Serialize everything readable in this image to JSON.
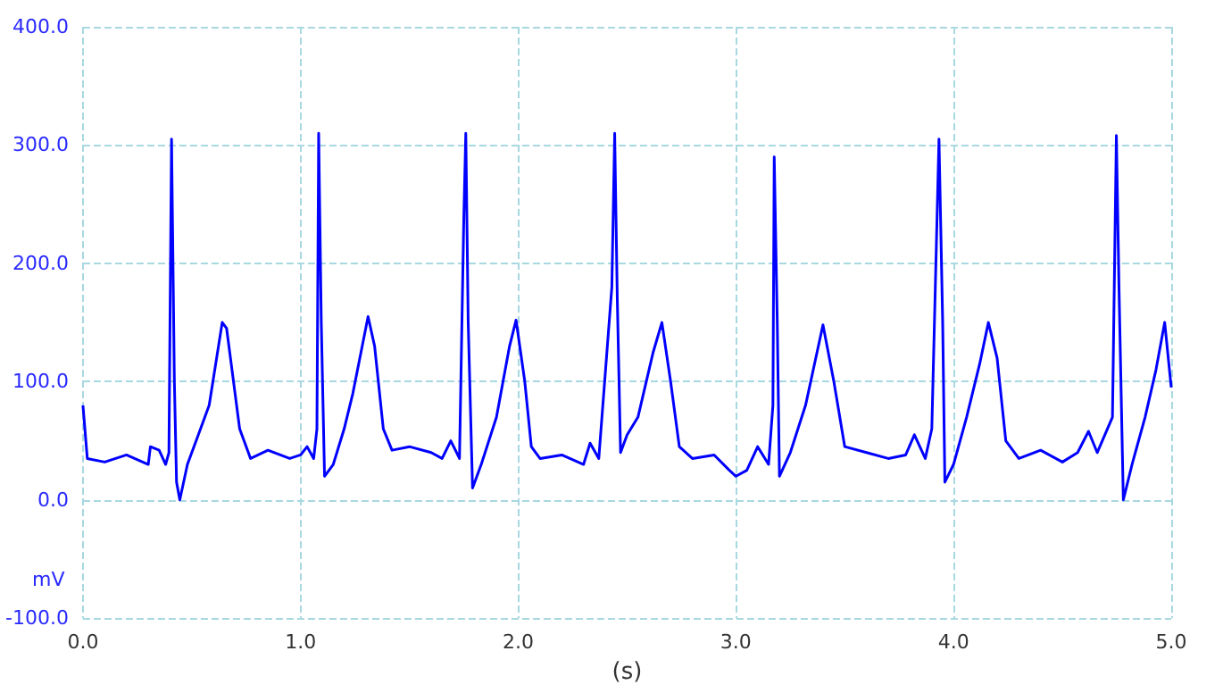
{
  "chart_data": {
    "type": "line",
    "xlabel": "(s)",
    "ylabel": "mV",
    "xlim": [
      0,
      5
    ],
    "ylim": [
      -100,
      400
    ],
    "xticks": [
      {
        "value": 0,
        "label": "0.0"
      },
      {
        "value": 1,
        "label": "1.0"
      },
      {
        "value": 2,
        "label": "2.0"
      },
      {
        "value": 3,
        "label": "3.0"
      },
      {
        "value": 4,
        "label": "4.0"
      },
      {
        "value": 5,
        "label": "5.0"
      }
    ],
    "yticks": [
      {
        "value": -100,
        "label": "-100.0"
      },
      {
        "value": 0,
        "label": "0.0"
      },
      {
        "value": 100,
        "label": "100.0"
      },
      {
        "value": 200,
        "label": "200.0"
      },
      {
        "value": 300,
        "label": "300.0"
      },
      {
        "value": 400,
        "label": "400.0"
      }
    ],
    "grid": true,
    "marker": "none",
    "series": [
      {
        "color": "#0000ff",
        "x": [
          0,
          0.02,
          0.1,
          0.2,
          0.3,
          0.31,
          0.35,
          0.38,
          0.395,
          0.407,
          0.42,
          0.43,
          0.445,
          0.48,
          0.53,
          0.58,
          0.64,
          0.66,
          0.72,
          0.77,
          0.85,
          0.95,
          1.0,
          1.03,
          1.06,
          1.075,
          1.083,
          1.095,
          1.11,
          1.15,
          1.2,
          1.24,
          1.31,
          1.34,
          1.38,
          1.42,
          1.5,
          1.6,
          1.65,
          1.69,
          1.73,
          1.75,
          1.759,
          1.77,
          1.79,
          1.83,
          1.9,
          1.96,
          1.99,
          2.03,
          2.06,
          2.1,
          2.2,
          2.3,
          2.33,
          2.37,
          2.43,
          2.443,
          2.455,
          2.47,
          2.5,
          2.55,
          2.62,
          2.66,
          2.7,
          2.74,
          2.8,
          2.9,
          2.97,
          3.0,
          3.05,
          3.1,
          3.15,
          3.17,
          3.176,
          3.19,
          3.2,
          3.25,
          3.32,
          3.4,
          3.45,
          3.5,
          3.6,
          3.7,
          3.78,
          3.82,
          3.87,
          3.9,
          3.933,
          3.95,
          3.96,
          4.0,
          4.06,
          4.12,
          4.16,
          4.2,
          4.24,
          4.3,
          4.4,
          4.5,
          4.57,
          4.62,
          4.66,
          4.73,
          4.748,
          4.76,
          4.78,
          4.82,
          4.88,
          4.93,
          4.97,
          5.0
        ],
        "values": [
          80,
          35,
          32,
          38,
          30,
          45,
          42,
          30,
          40,
          305,
          100,
          15,
          0,
          30,
          55,
          80,
          150,
          145,
          60,
          35,
          42,
          35,
          38,
          45,
          35,
          60,
          310,
          150,
          20,
          30,
          60,
          90,
          155,
          130,
          60,
          42,
          45,
          40,
          35,
          50,
          35,
          240,
          310,
          150,
          10,
          30,
          70,
          130,
          152,
          100,
          45,
          35,
          38,
          30,
          48,
          35,
          180,
          310,
          170,
          40,
          55,
          70,
          125,
          150,
          100,
          45,
          35,
          38,
          25,
          20,
          25,
          45,
          30,
          80,
          290,
          150,
          20,
          40,
          80,
          148,
          100,
          45,
          40,
          35,
          38,
          55,
          35,
          60,
          305,
          150,
          15,
          30,
          70,
          115,
          150,
          120,
          50,
          35,
          42,
          32,
          40,
          58,
          40,
          70,
          308,
          180,
          0,
          30,
          70,
          110,
          150,
          95
        ]
      }
    ]
  }
}
